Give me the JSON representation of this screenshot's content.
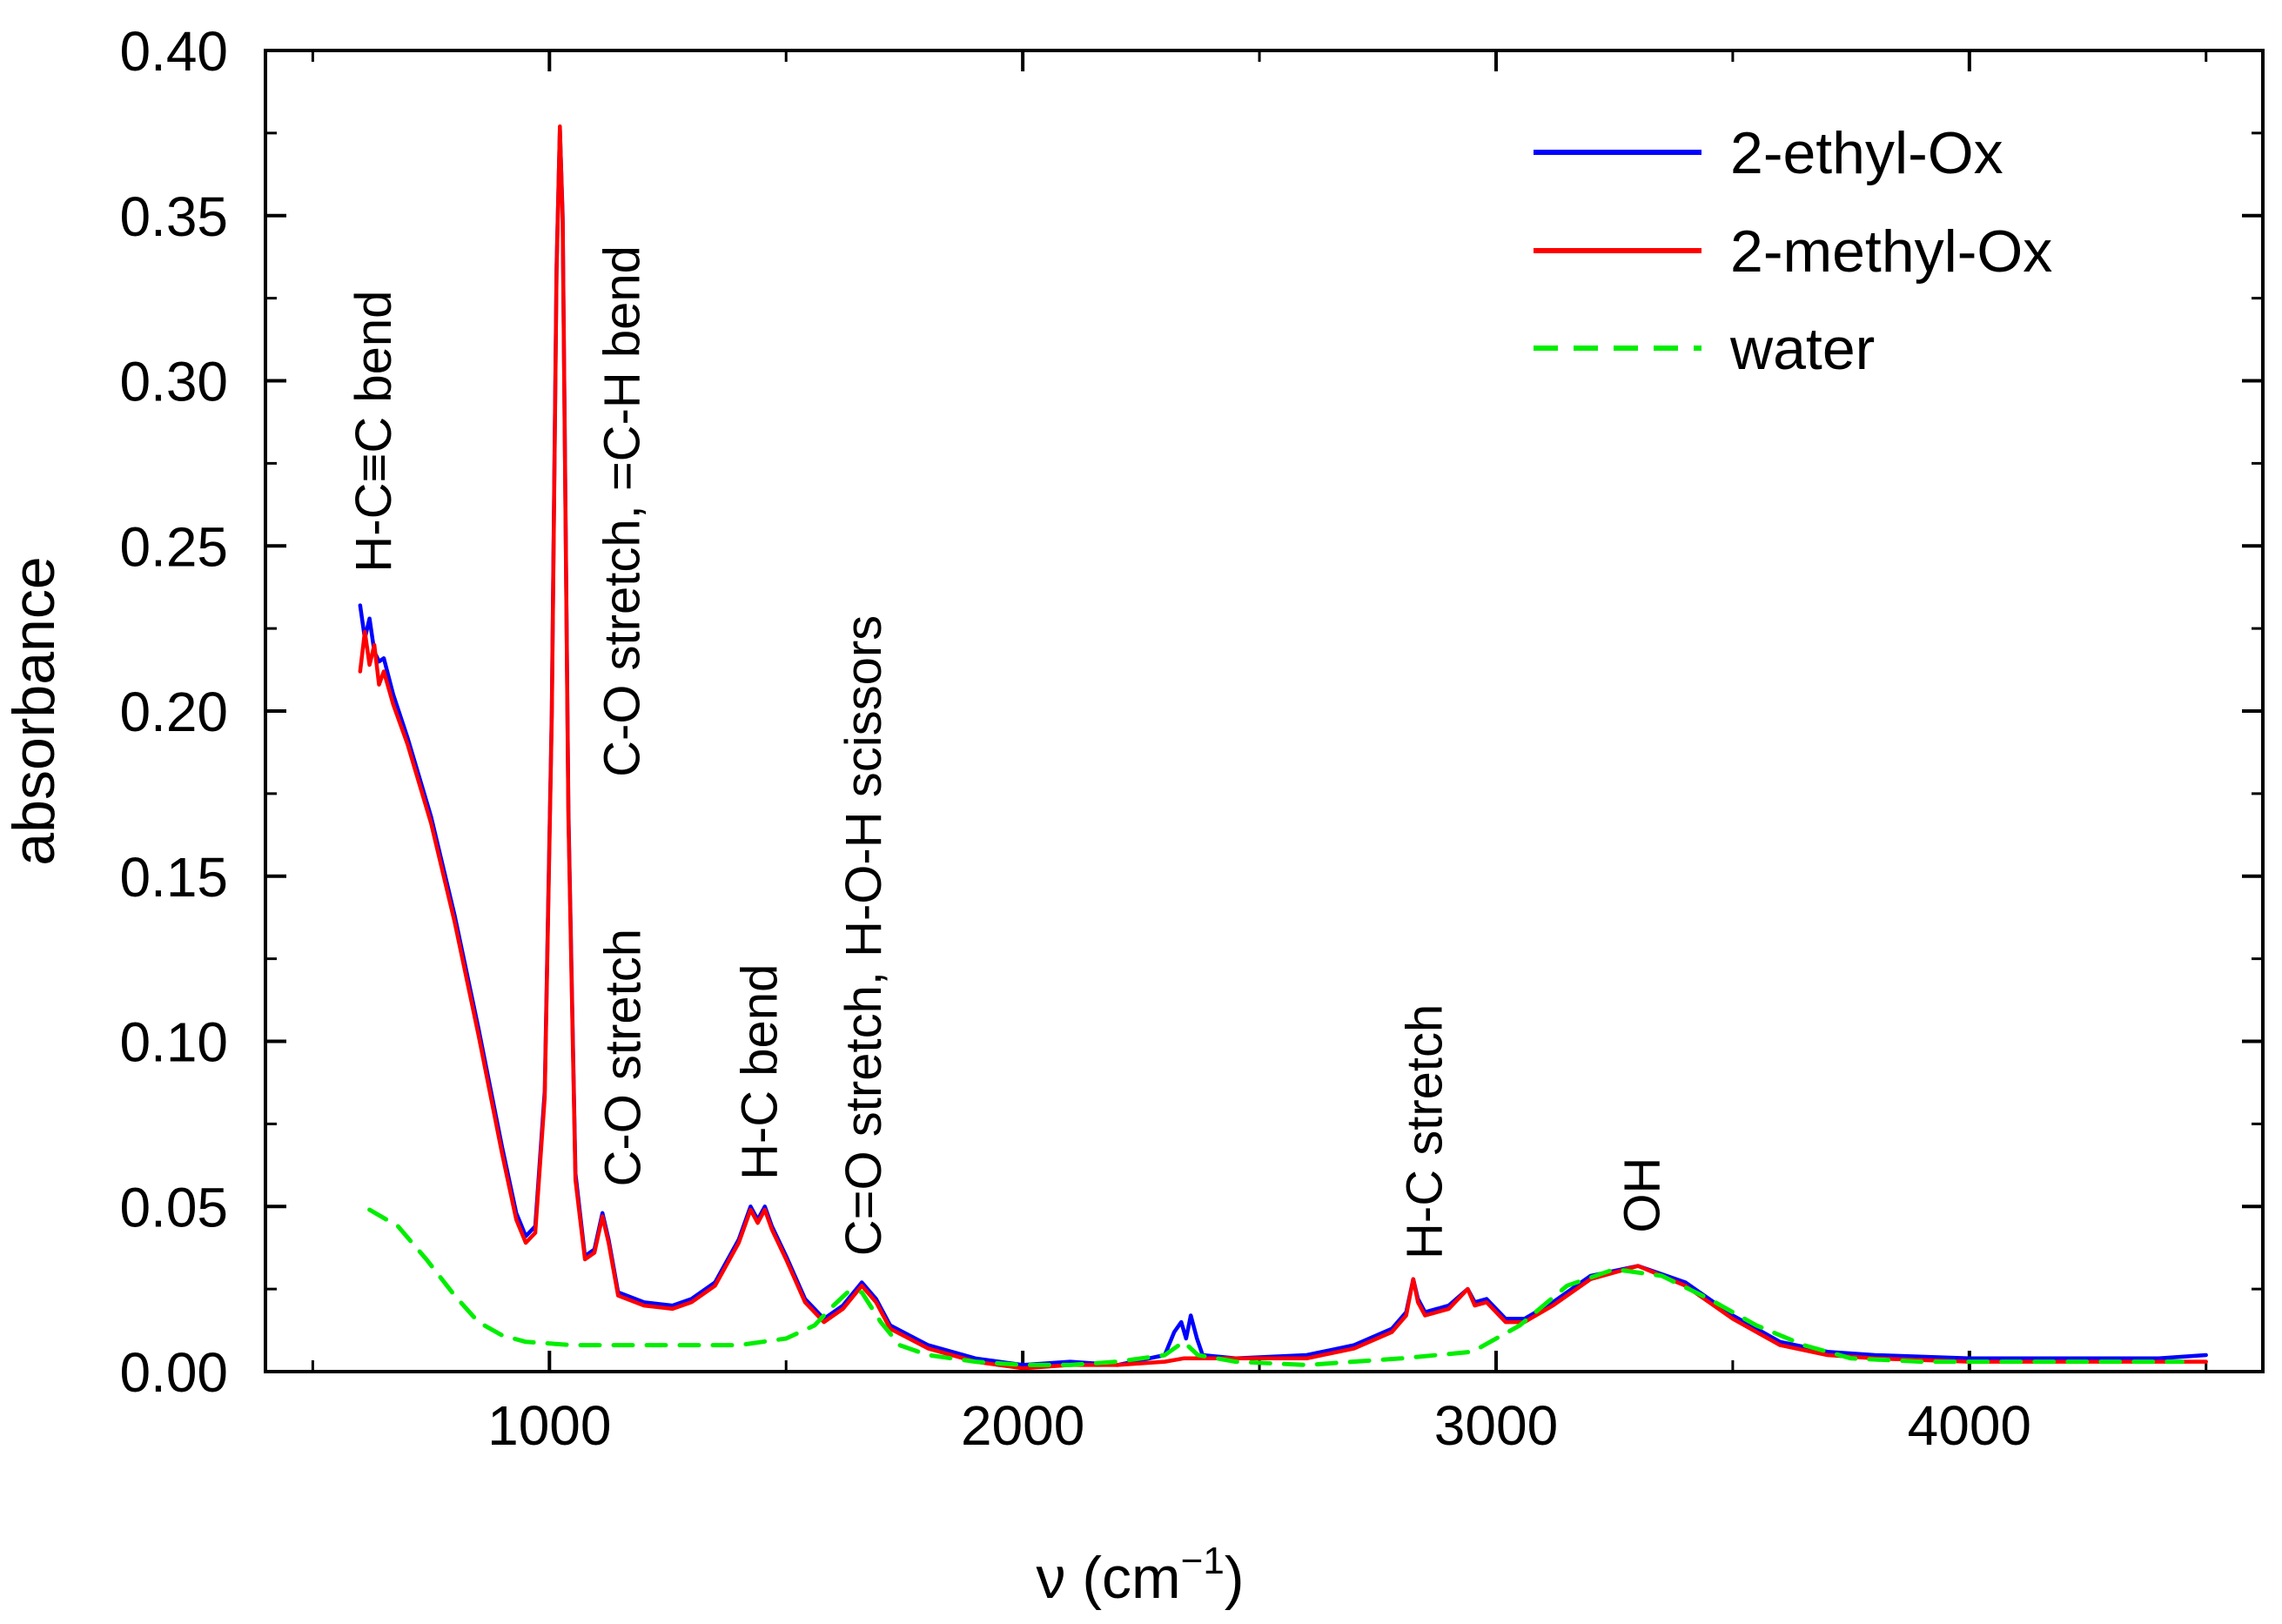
{
  "chart_data": {
    "type": "line",
    "title": "",
    "xlabel": "ν (cm",
    "xlabel_sup": "−1",
    "xlabel_close": ")",
    "ylabel": "absorbance",
    "xlim": [
      400,
      4620
    ],
    "ylim": [
      0.0,
      0.4
    ],
    "xticks": [
      1000,
      2000,
      3000,
      4000
    ],
    "xtick_labels": [
      "1000",
      "2000",
      "3000",
      "4000"
    ],
    "xminor": [
      500,
      1500,
      2500,
      3500,
      4500
    ],
    "yticks": [
      0.0,
      0.05,
      0.1,
      0.15,
      0.2,
      0.25,
      0.3,
      0.35,
      0.4
    ],
    "ytick_labels": [
      "0.00",
      "0.05",
      "0.10",
      "0.15",
      "0.20",
      "0.25",
      "0.30",
      "0.35",
      "0.40"
    ],
    "yminor": [
      0.025,
      0.075,
      0.125,
      0.175,
      0.225,
      0.275,
      0.325,
      0.375
    ],
    "grid": false,
    "legend_position": "top-right",
    "series": [
      {
        "name": "2-ethyl-Ox",
        "color": "#0000ff",
        "dash": "solid",
        "points": [
          [
            600,
            0.232
          ],
          [
            610,
            0.222
          ],
          [
            620,
            0.228
          ],
          [
            630,
            0.218
          ],
          [
            640,
            0.215
          ],
          [
            650,
            0.216
          ],
          [
            670,
            0.205
          ],
          [
            700,
            0.192
          ],
          [
            750,
            0.168
          ],
          [
            800,
            0.138
          ],
          [
            850,
            0.104
          ],
          [
            900,
            0.068
          ],
          [
            930,
            0.048
          ],
          [
            950,
            0.041
          ],
          [
            970,
            0.044
          ],
          [
            990,
            0.085
          ],
          [
            1005,
            0.2
          ],
          [
            1015,
            0.335
          ],
          [
            1022,
            0.376
          ],
          [
            1028,
            0.35
          ],
          [
            1040,
            0.17
          ],
          [
            1055,
            0.06
          ],
          [
            1075,
            0.035
          ],
          [
            1095,
            0.037
          ],
          [
            1112,
            0.048
          ],
          [
            1125,
            0.04
          ],
          [
            1145,
            0.024
          ],
          [
            1200,
            0.021
          ],
          [
            1260,
            0.02
          ],
          [
            1300,
            0.022
          ],
          [
            1350,
            0.027
          ],
          [
            1400,
            0.04
          ],
          [
            1425,
            0.05
          ],
          [
            1440,
            0.046
          ],
          [
            1455,
            0.05
          ],
          [
            1470,
            0.044
          ],
          [
            1500,
            0.035
          ],
          [
            1540,
            0.022
          ],
          [
            1580,
            0.016
          ],
          [
            1620,
            0.02
          ],
          [
            1660,
            0.027
          ],
          [
            1690,
            0.022
          ],
          [
            1720,
            0.014
          ],
          [
            1800,
            0.008
          ],
          [
            1900,
            0.004
          ],
          [
            2000,
            0.002
          ],
          [
            2100,
            0.003
          ],
          [
            2200,
            0.002
          ],
          [
            2300,
            0.005
          ],
          [
            2320,
            0.012
          ],
          [
            2335,
            0.015
          ],
          [
            2345,
            0.01
          ],
          [
            2355,
            0.017
          ],
          [
            2368,
            0.01
          ],
          [
            2380,
            0.005
          ],
          [
            2450,
            0.004
          ],
          [
            2600,
            0.005
          ],
          [
            2700,
            0.008
          ],
          [
            2780,
            0.013
          ],
          [
            2810,
            0.018
          ],
          [
            2825,
            0.028
          ],
          [
            2835,
            0.022
          ],
          [
            2850,
            0.018
          ],
          [
            2900,
            0.02
          ],
          [
            2940,
            0.025
          ],
          [
            2955,
            0.021
          ],
          [
            2980,
            0.022
          ],
          [
            3020,
            0.016
          ],
          [
            3060,
            0.016
          ],
          [
            3120,
            0.021
          ],
          [
            3200,
            0.029
          ],
          [
            3300,
            0.032
          ],
          [
            3400,
            0.027
          ],
          [
            3500,
            0.017
          ],
          [
            3600,
            0.009
          ],
          [
            3700,
            0.006
          ],
          [
            3800,
            0.005
          ],
          [
            4000,
            0.004
          ],
          [
            4200,
            0.004
          ],
          [
            4400,
            0.004
          ],
          [
            4500,
            0.005
          ]
        ]
      },
      {
        "name": "2-methyl-Ox",
        "color": "#ff0000",
        "dash": "solid",
        "points": [
          [
            600,
            0.212
          ],
          [
            610,
            0.224
          ],
          [
            620,
            0.214
          ],
          [
            630,
            0.22
          ],
          [
            640,
            0.208
          ],
          [
            650,
            0.212
          ],
          [
            670,
            0.202
          ],
          [
            700,
            0.19
          ],
          [
            750,
            0.166
          ],
          [
            800,
            0.136
          ],
          [
            850,
            0.102
          ],
          [
            900,
            0.066
          ],
          [
            930,
            0.046
          ],
          [
            950,
            0.039
          ],
          [
            970,
            0.042
          ],
          [
            990,
            0.083
          ],
          [
            1005,
            0.198
          ],
          [
            1015,
            0.333
          ],
          [
            1022,
            0.377
          ],
          [
            1028,
            0.348
          ],
          [
            1040,
            0.168
          ],
          [
            1055,
            0.058
          ],
          [
            1075,
            0.034
          ],
          [
            1095,
            0.036
          ],
          [
            1112,
            0.047
          ],
          [
            1125,
            0.039
          ],
          [
            1145,
            0.023
          ],
          [
            1200,
            0.02
          ],
          [
            1260,
            0.019
          ],
          [
            1300,
            0.021
          ],
          [
            1350,
            0.026
          ],
          [
            1400,
            0.039
          ],
          [
            1425,
            0.049
          ],
          [
            1440,
            0.045
          ],
          [
            1455,
            0.049
          ],
          [
            1470,
            0.043
          ],
          [
            1500,
            0.034
          ],
          [
            1540,
            0.021
          ],
          [
            1580,
            0.015
          ],
          [
            1620,
            0.019
          ],
          [
            1660,
            0.026
          ],
          [
            1690,
            0.021
          ],
          [
            1720,
            0.013
          ],
          [
            1800,
            0.007
          ],
          [
            1900,
            0.003
          ],
          [
            2000,
            0.001
          ],
          [
            2100,
            0.002
          ],
          [
            2200,
            0.002
          ],
          [
            2300,
            0.003
          ],
          [
            2340,
            0.004
          ],
          [
            2380,
            0.004
          ],
          [
            2450,
            0.004
          ],
          [
            2600,
            0.004
          ],
          [
            2700,
            0.007
          ],
          [
            2780,
            0.012
          ],
          [
            2810,
            0.017
          ],
          [
            2825,
            0.028
          ],
          [
            2835,
            0.021
          ],
          [
            2850,
            0.017
          ],
          [
            2900,
            0.019
          ],
          [
            2940,
            0.025
          ],
          [
            2955,
            0.02
          ],
          [
            2980,
            0.021
          ],
          [
            3020,
            0.015
          ],
          [
            3060,
            0.015
          ],
          [
            3120,
            0.02
          ],
          [
            3200,
            0.028
          ],
          [
            3300,
            0.032
          ],
          [
            3400,
            0.026
          ],
          [
            3500,
            0.016
          ],
          [
            3600,
            0.008
          ],
          [
            3700,
            0.005
          ],
          [
            3800,
            0.004
          ],
          [
            4000,
            0.003
          ],
          [
            4200,
            0.003
          ],
          [
            4400,
            0.003
          ],
          [
            4500,
            0.003
          ]
        ]
      },
      {
        "name": "water",
        "color": "#00ee00",
        "dash": "dashed",
        "points": [
          [
            620,
            0.049
          ],
          [
            680,
            0.044
          ],
          [
            740,
            0.034
          ],
          [
            800,
            0.023
          ],
          [
            850,
            0.015
          ],
          [
            900,
            0.011
          ],
          [
            950,
            0.009
          ],
          [
            1050,
            0.008
          ],
          [
            1200,
            0.008
          ],
          [
            1400,
            0.008
          ],
          [
            1500,
            0.01
          ],
          [
            1560,
            0.014
          ],
          [
            1600,
            0.02
          ],
          [
            1630,
            0.024
          ],
          [
            1660,
            0.024
          ],
          [
            1700,
            0.015
          ],
          [
            1740,
            0.008
          ],
          [
            1800,
            0.005
          ],
          [
            1900,
            0.003
          ],
          [
            2000,
            0.002
          ],
          [
            2100,
            0.002
          ],
          [
            2200,
            0.003
          ],
          [
            2300,
            0.005
          ],
          [
            2340,
            0.009
          ],
          [
            2370,
            0.005
          ],
          [
            2450,
            0.003
          ],
          [
            2600,
            0.002
          ],
          [
            2800,
            0.004
          ],
          [
            2950,
            0.006
          ],
          [
            3050,
            0.014
          ],
          [
            3150,
            0.026
          ],
          [
            3250,
            0.031
          ],
          [
            3350,
            0.029
          ],
          [
            3450,
            0.022
          ],
          [
            3550,
            0.014
          ],
          [
            3650,
            0.008
          ],
          [
            3750,
            0.004
          ],
          [
            3900,
            0.003
          ],
          [
            4100,
            0.003
          ],
          [
            4300,
            0.003
          ],
          [
            4450,
            0.003
          ]
        ]
      }
    ],
    "annotations": [
      {
        "text": "H-C≡C bend",
        "x": 665,
        "y_bottom": 0.242
      },
      {
        "text": "C-O stretch, =C-H bend",
        "x": 1190,
        "y_bottom": 0.18
      },
      {
        "text": "C-O stretch",
        "x": 1192,
        "y_bottom": 0.056
      },
      {
        "text": "H-C bend",
        "x": 1480,
        "y_bottom": 0.058
      },
      {
        "text": "C=O stretch, H-O-H scissors",
        "x": 1700,
        "y_bottom": 0.035
      },
      {
        "text": "H-C stretch",
        "x": 2885,
        "y_bottom": 0.034
      },
      {
        "text": "OH",
        "x": 3345,
        "y_bottom": 0.042
      }
    ]
  }
}
